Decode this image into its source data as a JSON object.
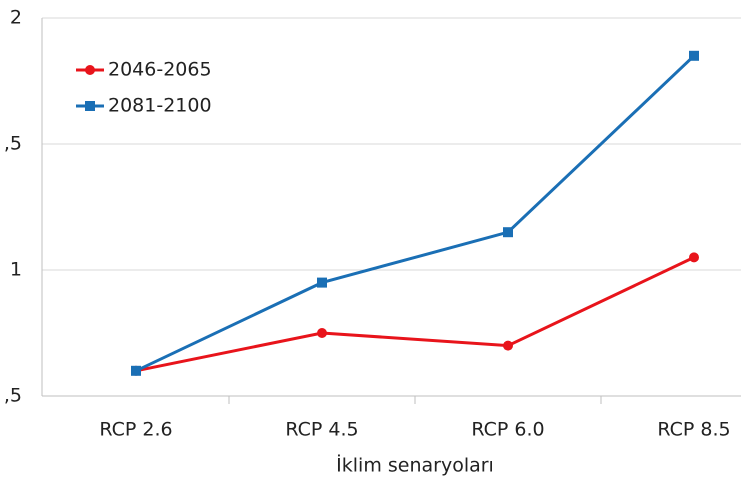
{
  "chart_data": {
    "type": "line",
    "x_label": "İklim senaryoları",
    "categories": [
      "RCP 2.6",
      "RCP 4.5",
      "RCP 6.0",
      "RCP 8.5"
    ],
    "series": [
      {
        "name": "2046-2065",
        "color": "#e8141b",
        "marker": "circle",
        "values": [
          0.6,
          0.75,
          0.7,
          1.05
        ]
      },
      {
        "name": "2081-2100",
        "color": "#1a6fb5",
        "marker": "square",
        "values": [
          0.6,
          0.95,
          1.15,
          1.85
        ]
      }
    ],
    "ylim": [
      0.5,
      2
    ],
    "yticks": [
      {
        "value": 0.5,
        "label": ",5"
      },
      1,
      {
        "value": 1.5,
        "label": ",5"
      },
      2
    ],
    "grid": true,
    "legend": "upper left"
  }
}
